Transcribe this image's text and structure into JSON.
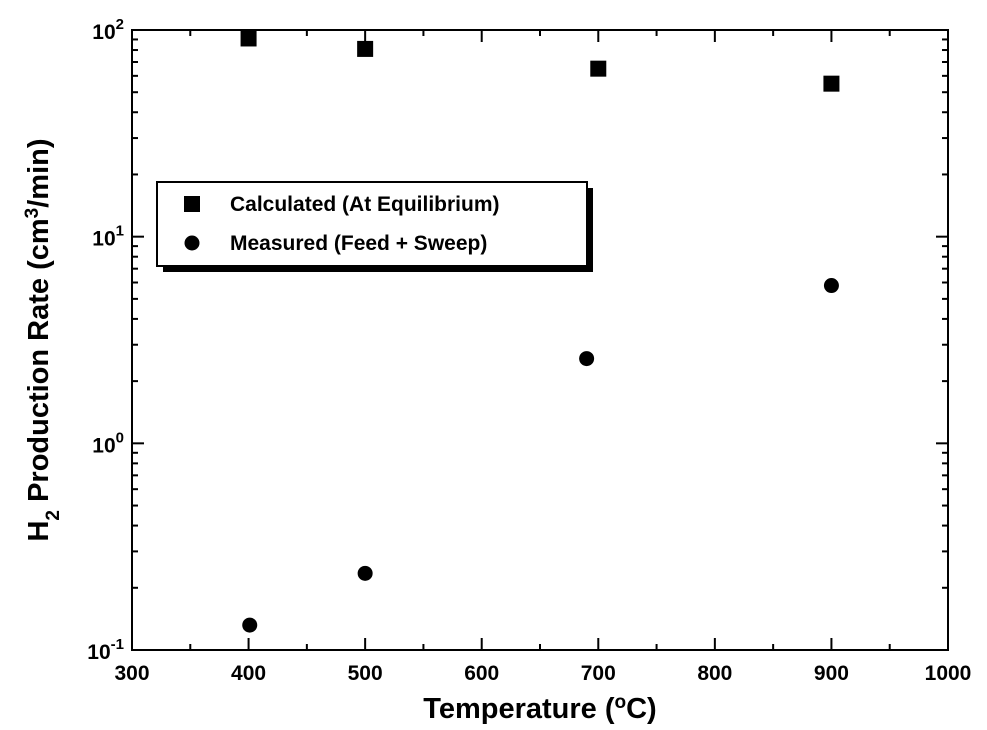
{
  "chart_data": {
    "type": "scatter",
    "xlabel": [
      "Temperature (",
      "o",
      "C)"
    ],
    "ylabel": [
      "H",
      "2",
      " Production Rate (cm",
      "3",
      "/min)"
    ],
    "xlim": [
      300,
      1000
    ],
    "xticks": [
      300,
      400,
      500,
      600,
      700,
      800,
      900,
      1000
    ],
    "ylim": [
      0.1,
      100
    ],
    "yscale": "log",
    "yticks": [
      {
        "value": 0.1,
        "label": "10",
        "exponent": "-1"
      },
      {
        "value": 1,
        "label": "10",
        "exponent": "0"
      },
      {
        "value": 10,
        "label": "10",
        "exponent": "1"
      },
      {
        "value": 100,
        "label": "10",
        "exponent": "2"
      }
    ],
    "legend": "center left",
    "series": [
      {
        "name": "Calculated (At Equilibrium)",
        "marker": "square",
        "color": "#000000",
        "x": [
          400,
          500,
          700,
          900
        ],
        "values": [
          91,
          81,
          65,
          55
        ]
      },
      {
        "name": "Measured (Feed + Sweep)",
        "marker": "circle",
        "color": "#000000",
        "x": [
          401,
          500,
          690,
          900
        ],
        "values": [
          0.132,
          0.235,
          2.57,
          5.8
        ]
      }
    ]
  }
}
